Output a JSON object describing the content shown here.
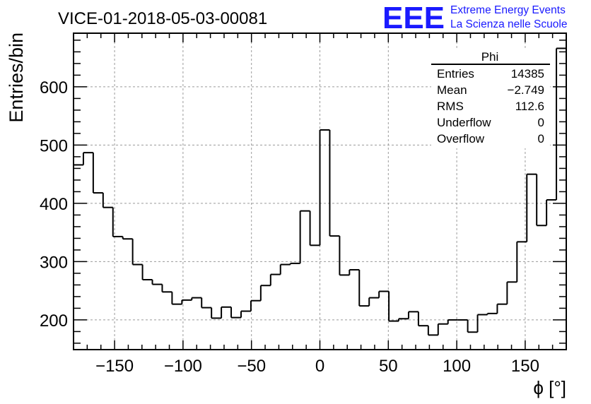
{
  "run_title": "VICE-01-2018-05-03-00081",
  "logo": {
    "text": "EEE",
    "line1": "Extreme Energy Events",
    "line2": "La Scienza nelle Scuole",
    "color": "#1a1aff"
  },
  "stats_box": {
    "title": "Phi",
    "rows": [
      {
        "label": "Entries",
        "value": "14385"
      },
      {
        "label": "Mean",
        "value": "−2.749"
      },
      {
        "label": "RMS",
        "value": "112.6"
      },
      {
        "label": "Underflow",
        "value": "0"
      },
      {
        "label": "Overflow",
        "value": "0"
      }
    ]
  },
  "chart_data": {
    "type": "histogram",
    "title": "VICE-01-2018-05-03-00081",
    "xlabel": "ϕ [°]",
    "ylabel": "Entries/bin",
    "xlim": [
      -180,
      180
    ],
    "ylim": [
      149,
      692
    ],
    "bin_width": 7.2,
    "grid": true,
    "line_color": "#000000",
    "x_ticks": [
      -150,
      -100,
      -50,
      0,
      50,
      100,
      150
    ],
    "x_tick_labels": [
      "−150",
      "−100",
      "−50",
      "0",
      "50",
      "100",
      "150"
    ],
    "y_ticks": [
      200,
      300,
      400,
      500,
      600
    ],
    "y_tick_labels": [
      "200",
      "300",
      "400",
      "500",
      "600"
    ],
    "values": [
      466,
      487,
      418,
      393,
      343,
      339,
      295,
      269,
      261,
      248,
      227,
      234,
      238,
      221,
      203,
      222,
      204,
      215,
      233,
      259,
      278,
      295,
      297,
      387,
      328,
      526,
      344,
      277,
      286,
      224,
      238,
      249,
      198,
      202,
      214,
      190,
      174,
      193,
      200,
      200,
      179,
      209,
      211,
      227,
      265,
      334,
      450,
      362,
      406,
      666
    ]
  }
}
